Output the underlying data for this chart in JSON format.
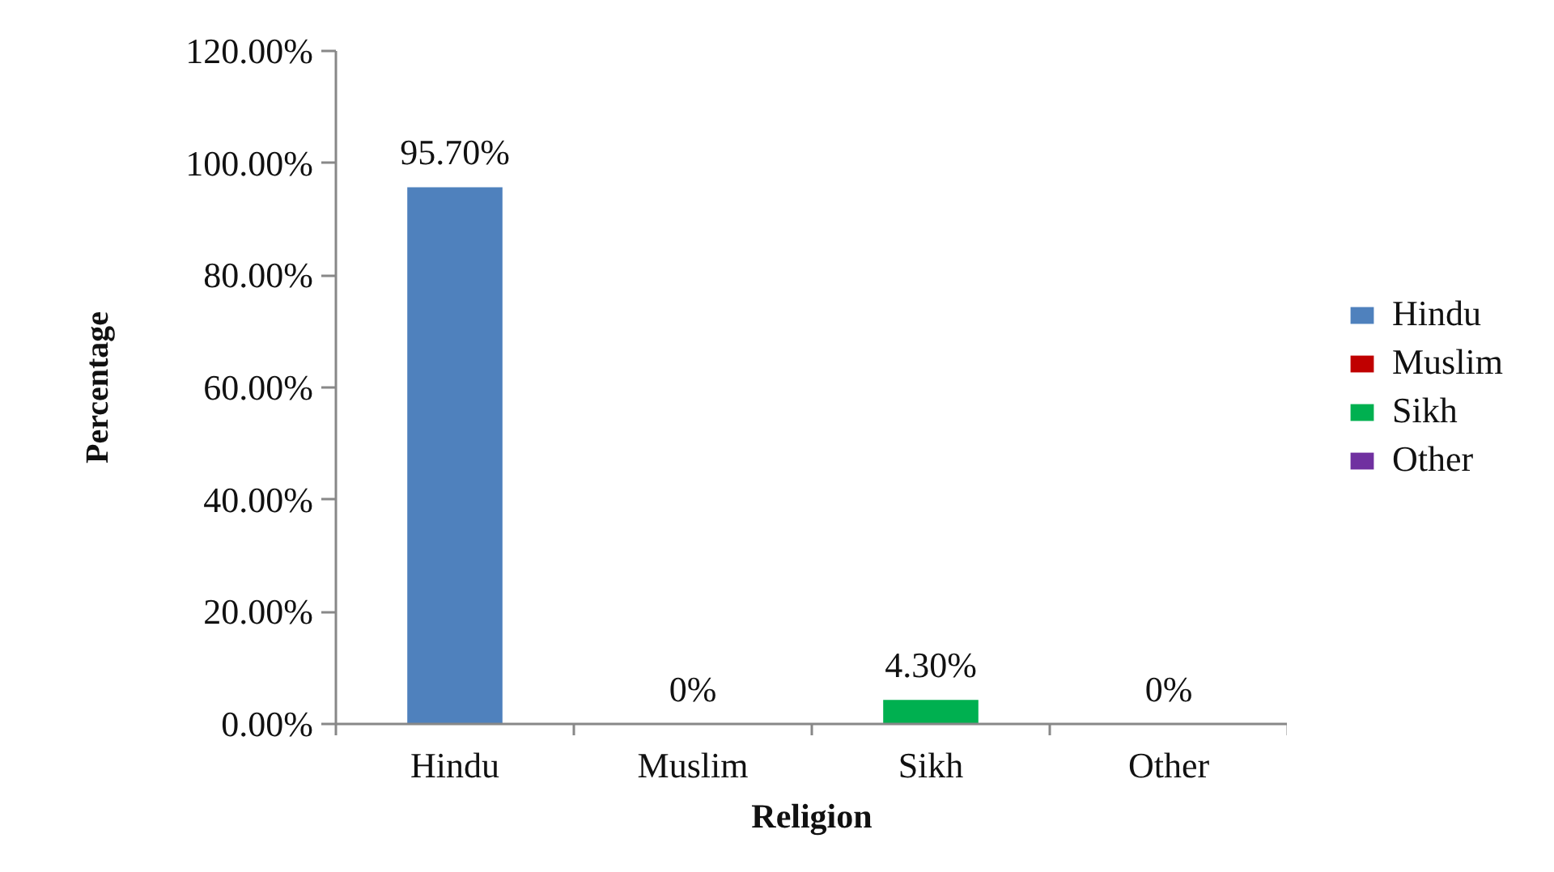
{
  "chart_data": {
    "type": "bar",
    "xlabel": "Religion",
    "ylabel": "Percentage",
    "categories": [
      "Hindu",
      "Muslim",
      "Sikh",
      "Other"
    ],
    "series": [
      {
        "name": "Hindu",
        "color": "#4f81bd",
        "values": [
          95.7,
          null,
          null,
          null
        ],
        "value_labels": [
          "95.70%",
          null,
          null,
          null
        ]
      },
      {
        "name": "Muslim",
        "color": "#c00000",
        "values": [
          null,
          0,
          null,
          null
        ],
        "value_labels": [
          null,
          "0%",
          null,
          null
        ]
      },
      {
        "name": "Sikh",
        "color": "#00b050",
        "values": [
          null,
          null,
          4.3,
          null
        ],
        "value_labels": [
          null,
          null,
          "4.30%",
          null
        ]
      },
      {
        "name": "Other",
        "color": "#7030a0",
        "values": [
          null,
          null,
          null,
          0
        ],
        "value_labels": [
          null,
          null,
          null,
          "0%"
        ]
      }
    ],
    "stacked": true,
    "ylim": [
      0,
      120
    ],
    "yticks": [
      {
        "value": 0,
        "label": "0.00%"
      },
      {
        "value": 20,
        "label": "20.00%"
      },
      {
        "value": 40,
        "label": "40.00%"
      },
      {
        "value": 60,
        "label": "60.00%"
      },
      {
        "value": 80,
        "label": "80.00%"
      },
      {
        "value": 100,
        "label": "100.00%"
      },
      {
        "value": 120,
        "label": "120.00%"
      }
    ],
    "grid": false,
    "legend": "right"
  }
}
